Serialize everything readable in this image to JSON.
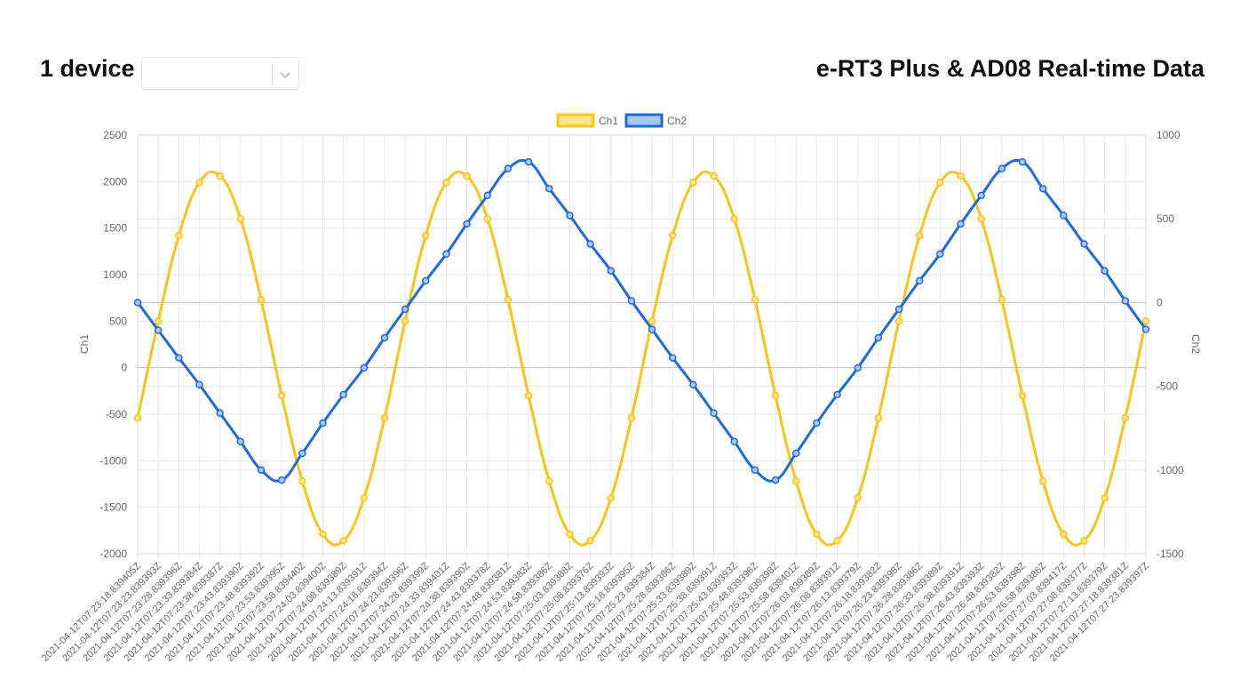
{
  "header": {
    "device_count": "1 device",
    "title": "e-RT3 Plus & AD08 Real-time Data"
  },
  "device_select": {
    "value": "",
    "icon": "chevron-down-icon"
  },
  "chart_data": {
    "type": "line",
    "grid": true,
    "legend_position": "top-center",
    "x": [
      "2021-04-12T07:23:18.839405Z",
      "2021-04-12T07:23:23.839393Z",
      "2021-04-12T07:23:28.839396Z",
      "2021-04-12T07:23:33.839384Z",
      "2021-04-12T07:23:38.839387Z",
      "2021-04-12T07:23:43.839390Z",
      "2021-04-12T07:23:48.839392Z",
      "2021-04-12T07:23:53.839395Z",
      "2021-04-12T07:23:58.839440Z",
      "2021-04-12T07:24:03.839400Z",
      "2021-04-12T07:24:08.839389Z",
      "2021-04-12T07:24:13.839391Z",
      "2021-04-12T07:24:18.839394Z",
      "2021-04-12T07:24:23.839396Z",
      "2021-04-12T07:24:28.839399Z",
      "2021-04-12T07:24:33.839401Z",
      "2021-04-12T07:24:38.839390Z",
      "2021-04-12T07:24:43.839378Z",
      "2021-04-12T07:24:48.839381Z",
      "2021-04-12T07:24:53.839383Z",
      "2021-04-12T07:24:58.839386Z",
      "2021-04-12T07:25:03.839388Z",
      "2021-04-12T07:25:08.839376Z",
      "2021-04-12T07:25:13.839393Z",
      "2021-04-12T07:25:18.839395Z",
      "2021-04-12T07:25:23.839384Z",
      "2021-04-12T07:25:28.839386Z",
      "2021-04-12T07:25:33.839389Z",
      "2021-04-12T07:25:38.839391Z",
      "2021-04-12T07:25:43.839393Z",
      "2021-04-12T07:25:48.839396Z",
      "2021-04-12T07:25:53.839398Z",
      "2021-04-12T07:25:58.839401Z",
      "2021-04-12T07:26:03.839389Z",
      "2021-04-12T07:26:08.839391Z",
      "2021-04-12T07:26:13.839379Z",
      "2021-04-12T07:26:18.839382Z",
      "2021-04-12T07:26:23.839398Z",
      "2021-04-12T07:26:28.839386Z",
      "2021-04-12T07:26:33.839389Z",
      "2021-04-12T07:26:38.839391Z",
      "2021-04-12T07:26:43.839393Z",
      "2021-04-12T07:26:48.839382Z",
      "2021-04-12T07:26:53.839398Z",
      "2021-04-12T07:26:58.839386Z",
      "2021-04-12T07:27:03.839417Z",
      "2021-04-12T07:27:08.839377Z",
      "2021-04-12T07:27:13.839379Z",
      "2021-04-12T07:27:18.839381Z",
      "2021-04-12T07:27:23.839397Z"
    ],
    "series": [
      {
        "name": "Ch1",
        "axis": "left",
        "color": "#f5c518",
        "fill": "#fbe38f",
        "values": [
          -540,
          500,
          1420,
          1990,
          2060,
          1600,
          730,
          -300,
          -1220,
          -1790,
          -1860,
          -1400,
          -540,
          500,
          1420,
          1990,
          2060,
          1600,
          730,
          -300,
          -1220,
          -1790,
          -1860,
          -1400,
          -540,
          500,
          1420,
          1990,
          2060,
          1600,
          730,
          -300,
          -1220,
          -1790,
          -1860,
          -1400,
          -540,
          500,
          1420,
          1990,
          2060,
          1600,
          730,
          -300,
          -1220,
          -1790,
          -1860,
          -1400,
          -540,
          500
        ]
      },
      {
        "name": "Ch2",
        "axis": "right",
        "color": "#1e6ad8",
        "fill": "#a9c8f2",
        "values": [
          0,
          -165,
          -330,
          -490,
          -660,
          -830,
          -1000,
          -1060,
          -900,
          -720,
          -550,
          -390,
          -210,
          -40,
          130,
          290,
          470,
          640,
          800,
          840,
          680,
          520,
          350,
          190,
          10,
          -160,
          -330,
          -490,
          -660,
          -830,
          -1000,
          -1060,
          -900,
          -720,
          -550,
          -390,
          -210,
          -40,
          130,
          290,
          470,
          640,
          800,
          840,
          680,
          520,
          350,
          190,
          10,
          -160
        ]
      }
    ],
    "y_left": {
      "label": "Ch1",
      "range": [
        -2000,
        2500
      ],
      "ticks": [
        "2500",
        "2000",
        "1500",
        "1000",
        "500",
        "0",
        "-500",
        "-1000",
        "-1500",
        "-2000"
      ]
    },
    "y_right": {
      "label": "Ch2",
      "range": [
        -1500,
        1000
      ],
      "ticks": [
        "1000",
        "500",
        "0",
        "-500",
        "-1000",
        "-1500"
      ]
    }
  }
}
